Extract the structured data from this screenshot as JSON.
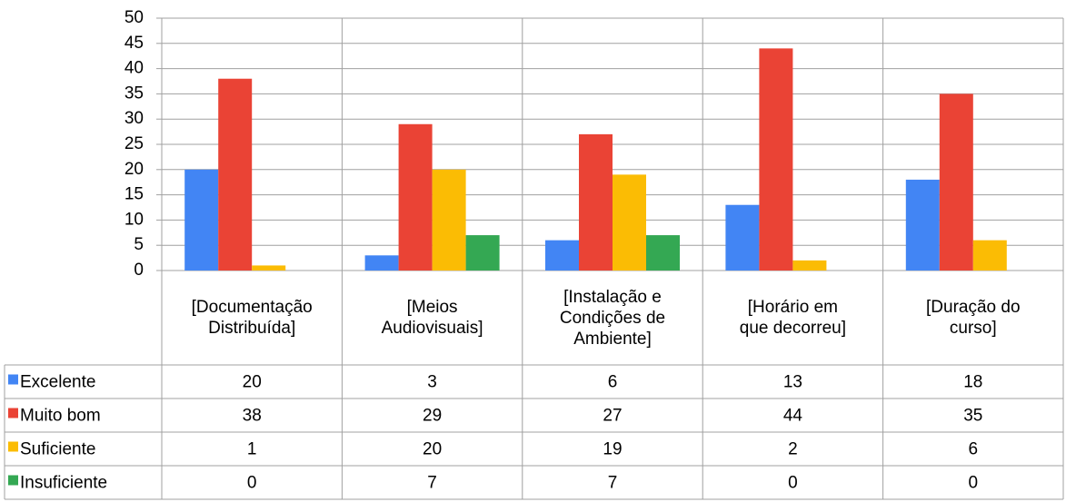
{
  "chart_data": {
    "type": "bar",
    "categories": [
      "[Documentação\nDistribuída]",
      "[Meios\nAudiovisuais]",
      "[Instalação e\nCondições de\nAmbiente]",
      "[Horário em\nque decorreu]",
      "[Duração do\ncurso]"
    ],
    "series": [
      {
        "name": "Excelente",
        "color": "#4285f4",
        "values": [
          20,
          3,
          6,
          13,
          18
        ]
      },
      {
        "name": "Muito bom",
        "color": "#ea4335",
        "values": [
          38,
          29,
          27,
          44,
          35
        ]
      },
      {
        "name": "Suficiente",
        "color": "#fbbc04",
        "values": [
          1,
          20,
          19,
          2,
          6
        ]
      },
      {
        "name": "Insuficiente",
        "color": "#34a853",
        "values": [
          0,
          7,
          7,
          0,
          0
        ]
      }
    ],
    "ylim": [
      0,
      50
    ],
    "yticks": [
      0,
      5,
      10,
      15,
      20,
      25,
      30,
      35,
      40,
      45,
      50
    ],
    "grid": true
  }
}
